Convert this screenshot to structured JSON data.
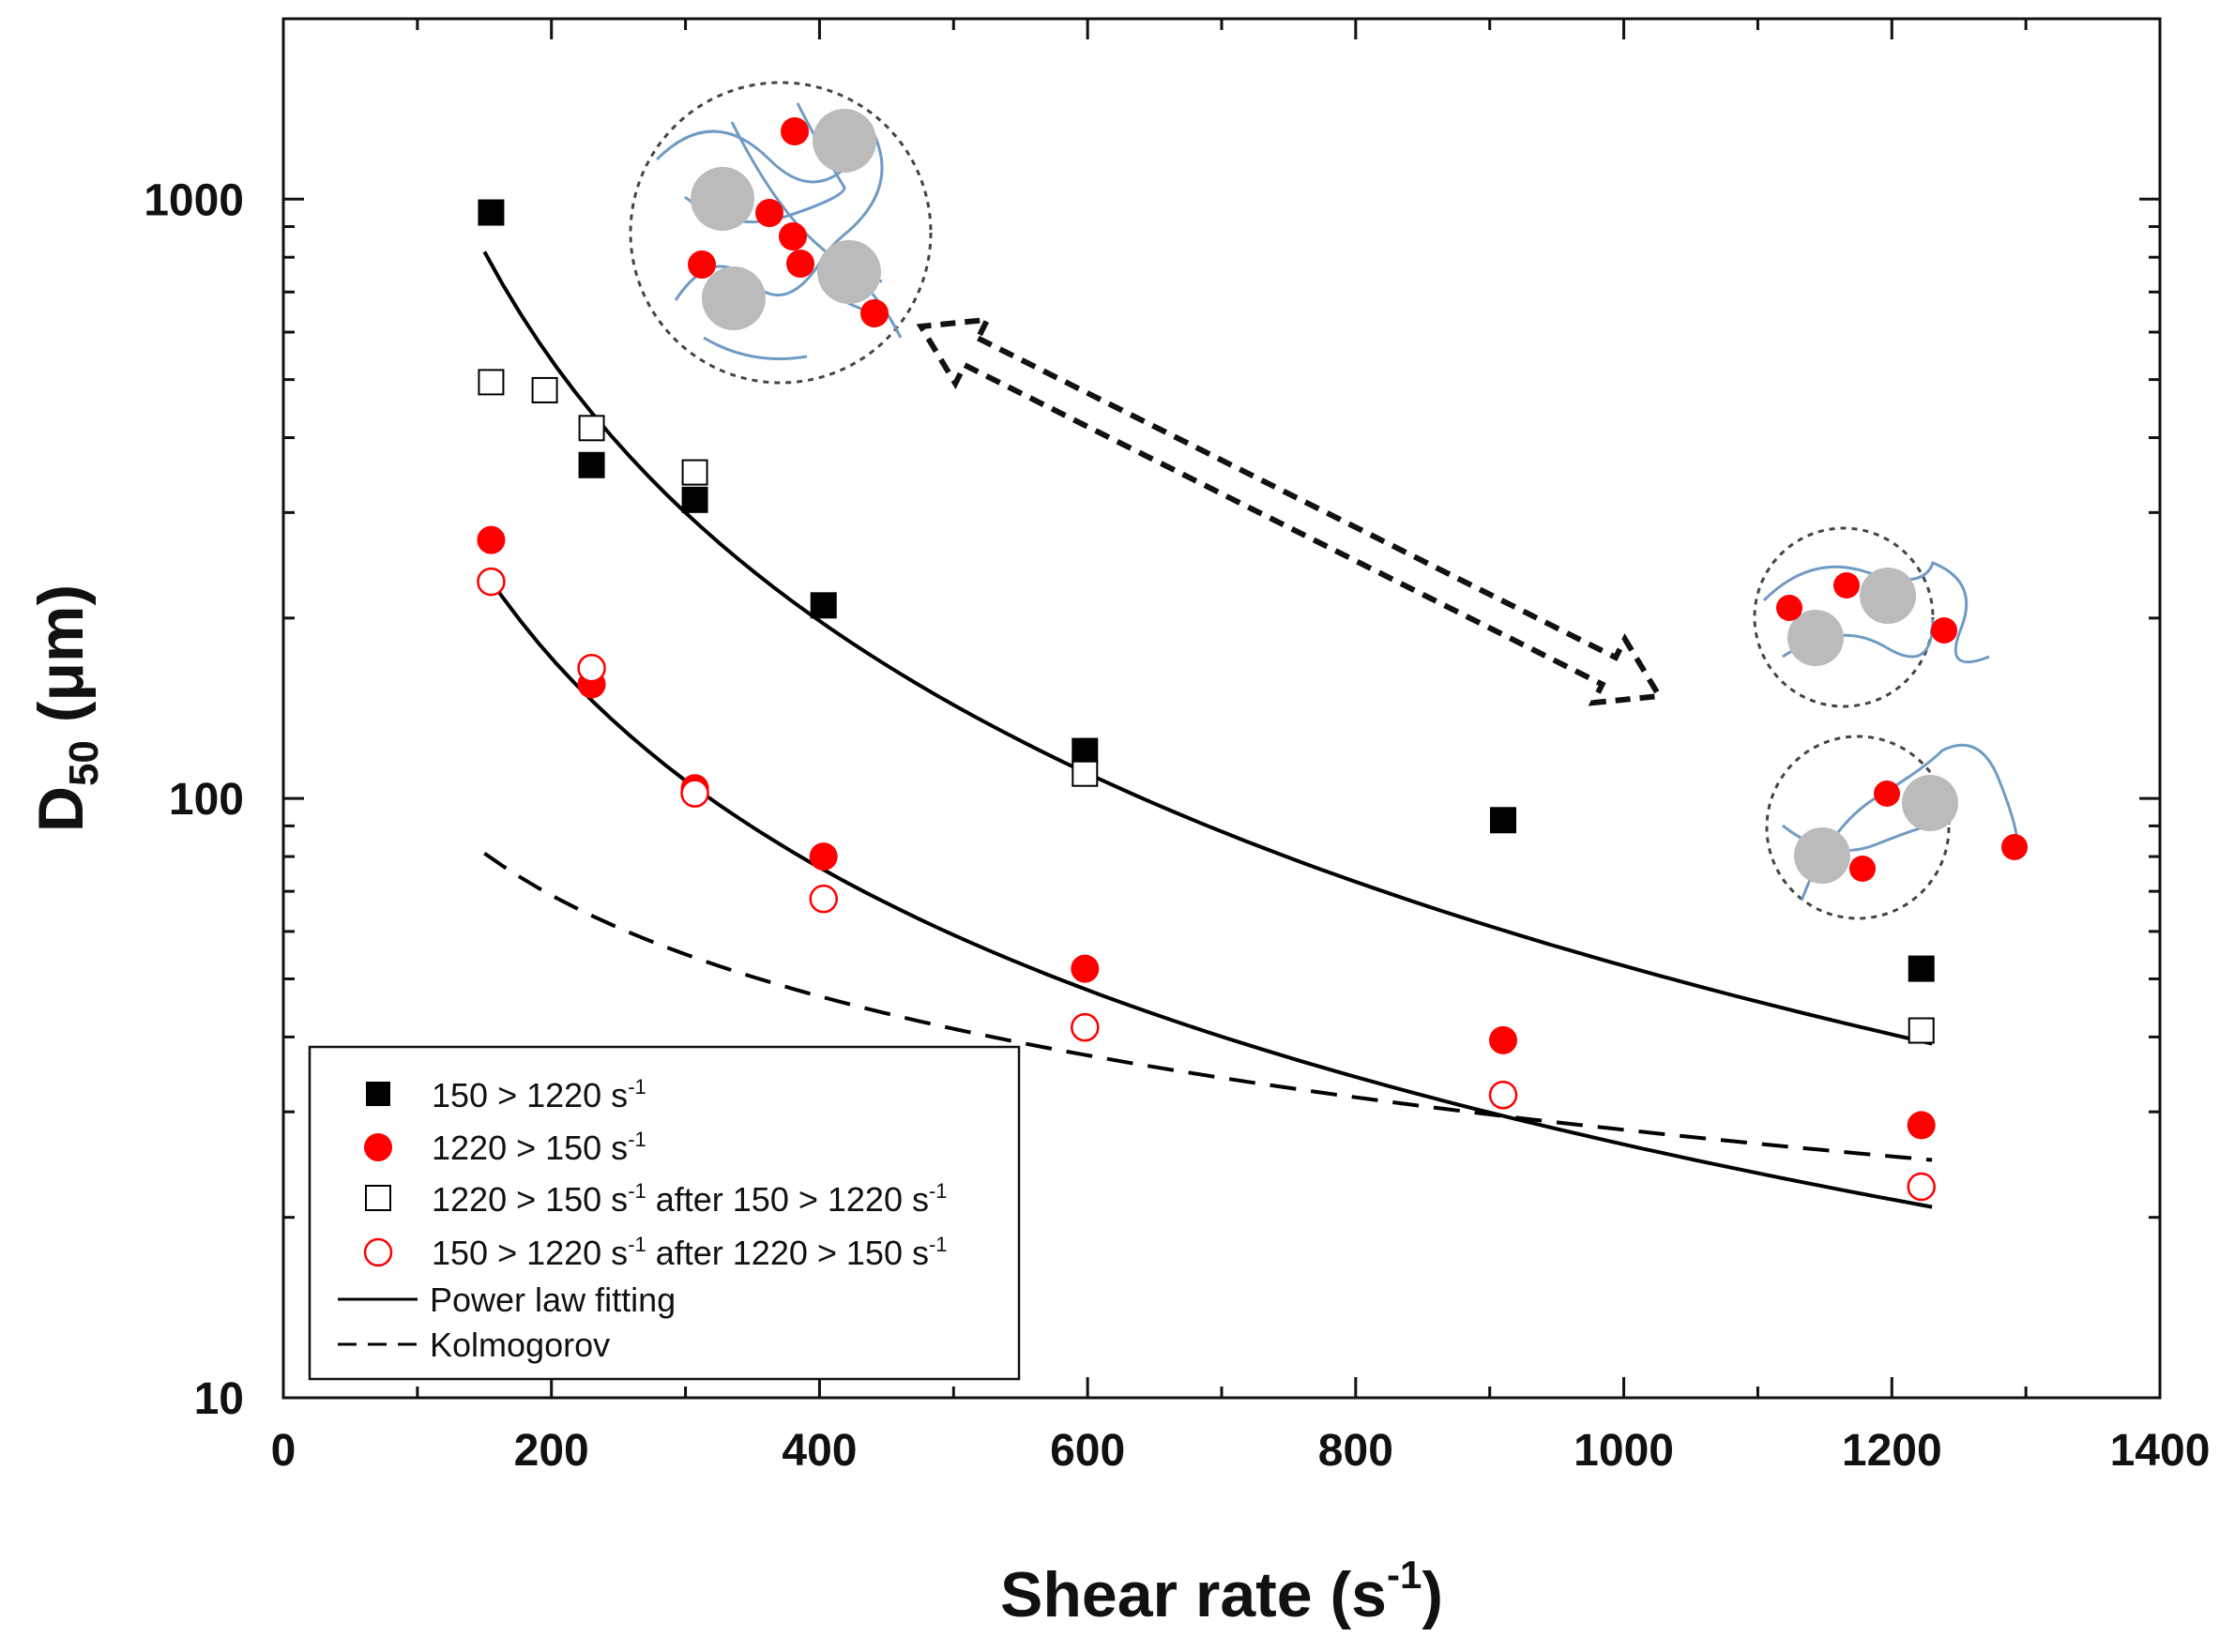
{
  "chart_data": {
    "type": "scatter",
    "title": "",
    "xlabel": "Shear rate (s",
    "xlabel_sup": "-1",
    "xlabel_close": ")",
    "ylabel": "D",
    "ylabel_sub": "50",
    "ylabel_unit": " (μm)",
    "xlim": [
      0,
      1400
    ],
    "ylim": [
      10,
      2000
    ],
    "yscale": "log",
    "xticks": [
      0,
      200,
      400,
      600,
      800,
      1000,
      1200,
      1400
    ],
    "yticks": [
      10,
      100,
      1000
    ],
    "xtick_labels": [
      "0",
      "200",
      "400",
      "600",
      "800",
      "1000",
      "1200",
      "1400"
    ],
    "ytick_labels": [
      "10",
      "100",
      "1000"
    ],
    "grid": false,
    "legend_position": "bottom-left",
    "series": [
      {
        "name": "150 > 1220 s",
        "name_sup": "-1",
        "marker": "filled-square",
        "color": "#000000",
        "x": [
          155,
          230,
          307,
          403,
          598,
          910,
          1222
        ],
        "y": [
          950,
          360,
          315,
          210,
          120,
          92,
          52
        ]
      },
      {
        "name": "1220 > 150 s",
        "name_sup": "-1",
        "marker": "filled-circle",
        "color": "#ff0000",
        "x": [
          155,
          230,
          307,
          403,
          598,
          910,
          1222
        ],
        "y": [
          270,
          155,
          104,
          80,
          52,
          39.5,
          28.5
        ]
      },
      {
        "name": "1220 > 150 s",
        "name_sup": "-1",
        "name_mid": " after 150 > 1220 s",
        "name_sup2": "-1",
        "marker": "open-square",
        "color": "#000000",
        "x": [
          155,
          195,
          230,
          307,
          598,
          1222
        ],
        "y": [
          495,
          480,
          415,
          350,
          110,
          41
        ]
      },
      {
        "name": "150 > 1220 s",
        "name_sup": "-1",
        "name_mid": " after 1220 > 150 s",
        "name_sup2": "-1",
        "marker": "open-circle",
        "color": "#ff0000",
        "x": [
          155,
          230,
          307,
          403,
          598,
          910,
          1222
        ],
        "y": [
          230,
          165,
          102,
          68,
          41.5,
          32,
          22.5
        ]
      },
      {
        "name": "Power law fitting",
        "marker": "solid-line",
        "color": "#000000",
        "curves": [
          {
            "x_range": [
              150,
              1230
            ],
            "a": 1145000,
            "b": -1.446
          },
          {
            "x_range": [
              150,
              1230
            ],
            "a": 80500,
            "b": -1.161
          }
        ]
      },
      {
        "name": "Kolmogorov",
        "marker": "dashed-line",
        "color": "#000000",
        "x_range": [
          150,
          1230
        ],
        "a": 1340,
        "b": -0.56
      }
    ]
  },
  "annotations": {
    "arrow": "double-headed dashed arrow",
    "insets": [
      "large floc schematic",
      "small floc schematic",
      "small floc schematic"
    ]
  },
  "colors": {
    "particle_gray": "#bbbbbb",
    "polymer_blue": "#6f9ac4",
    "red_marker": "#ff0000",
    "axis": "#111111"
  }
}
